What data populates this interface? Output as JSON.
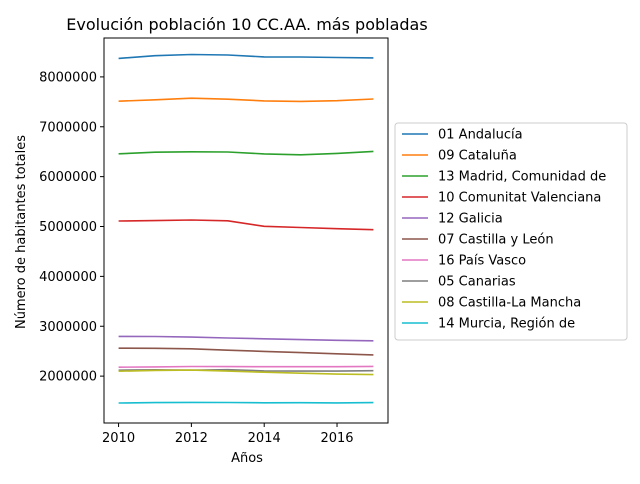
{
  "chart_data": {
    "type": "line",
    "title": "Evolución población 10 CC.AA. más pobladas",
    "xlabel": "Años",
    "ylabel": "Número de habitantes totales",
    "x": [
      2010,
      2011,
      2012,
      2013,
      2014,
      2015,
      2016,
      2017
    ],
    "xlim": [
      2009.6,
      2017.4
    ],
    "ylim": [
      1060000,
      8780000
    ],
    "xticks": [
      2010,
      2012,
      2014,
      2016
    ],
    "yticks": [
      2000000,
      3000000,
      4000000,
      5000000,
      6000000,
      7000000,
      8000000
    ],
    "legend_position": "right, outside plot",
    "grid": false,
    "series": [
      {
        "name": "01 Andalucía",
        "color": "#1f77b4",
        "values": [
          8370000,
          8425000,
          8450000,
          8440000,
          8402000,
          8400000,
          8388000,
          8380000
        ]
      },
      {
        "name": "09 Cataluña",
        "color": "#ff7f0e",
        "values": [
          7512000,
          7540000,
          7572000,
          7553000,
          7519000,
          7509000,
          7522000,
          7556000
        ]
      },
      {
        "name": "13 Madrid, Comunidad de",
        "color": "#2ca02c",
        "values": [
          6458000,
          6490000,
          6498000,
          6495000,
          6455000,
          6437000,
          6467000,
          6506000
        ]
      },
      {
        "name": "10 Comunitat Valenciana",
        "color": "#d62728",
        "values": [
          5111000,
          5118000,
          5130000,
          5114000,
          5005000,
          4981000,
          4957000,
          4937000
        ]
      },
      {
        "name": "12 Galicia",
        "color": "#9467bd",
        "values": [
          2797000,
          2795000,
          2782000,
          2765000,
          2749000,
          2732000,
          2718000,
          2708000
        ]
      },
      {
        "name": "07 Castilla y León",
        "color": "#8c564b",
        "values": [
          2560000,
          2558000,
          2547000,
          2520000,
          2495000,
          2472000,
          2448000,
          2425000
        ]
      },
      {
        "name": "16 País Vasco",
        "color": "#e377c2",
        "values": [
          2178000,
          2185000,
          2193000,
          2191000,
          2188000,
          2189000,
          2189000,
          2194000
        ]
      },
      {
        "name": "05 Canarias",
        "color": "#7f7f7f",
        "values": [
          2118000,
          2126000,
          2118000,
          2128000,
          2104000,
          2101000,
          2101000,
          2108000
        ]
      },
      {
        "name": "08 Castilla-La Mancha",
        "color": "#bcbd22",
        "values": [
          2098000,
          2115000,
          2121000,
          2100000,
          2078000,
          2059000,
          2041000,
          2031000
        ]
      },
      {
        "name": "14 Murcia, Región de",
        "color": "#17becf",
        "values": [
          1462000,
          1470000,
          1474000,
          1472000,
          1466000,
          1467000,
          1464000,
          1470000
        ]
      }
    ]
  }
}
